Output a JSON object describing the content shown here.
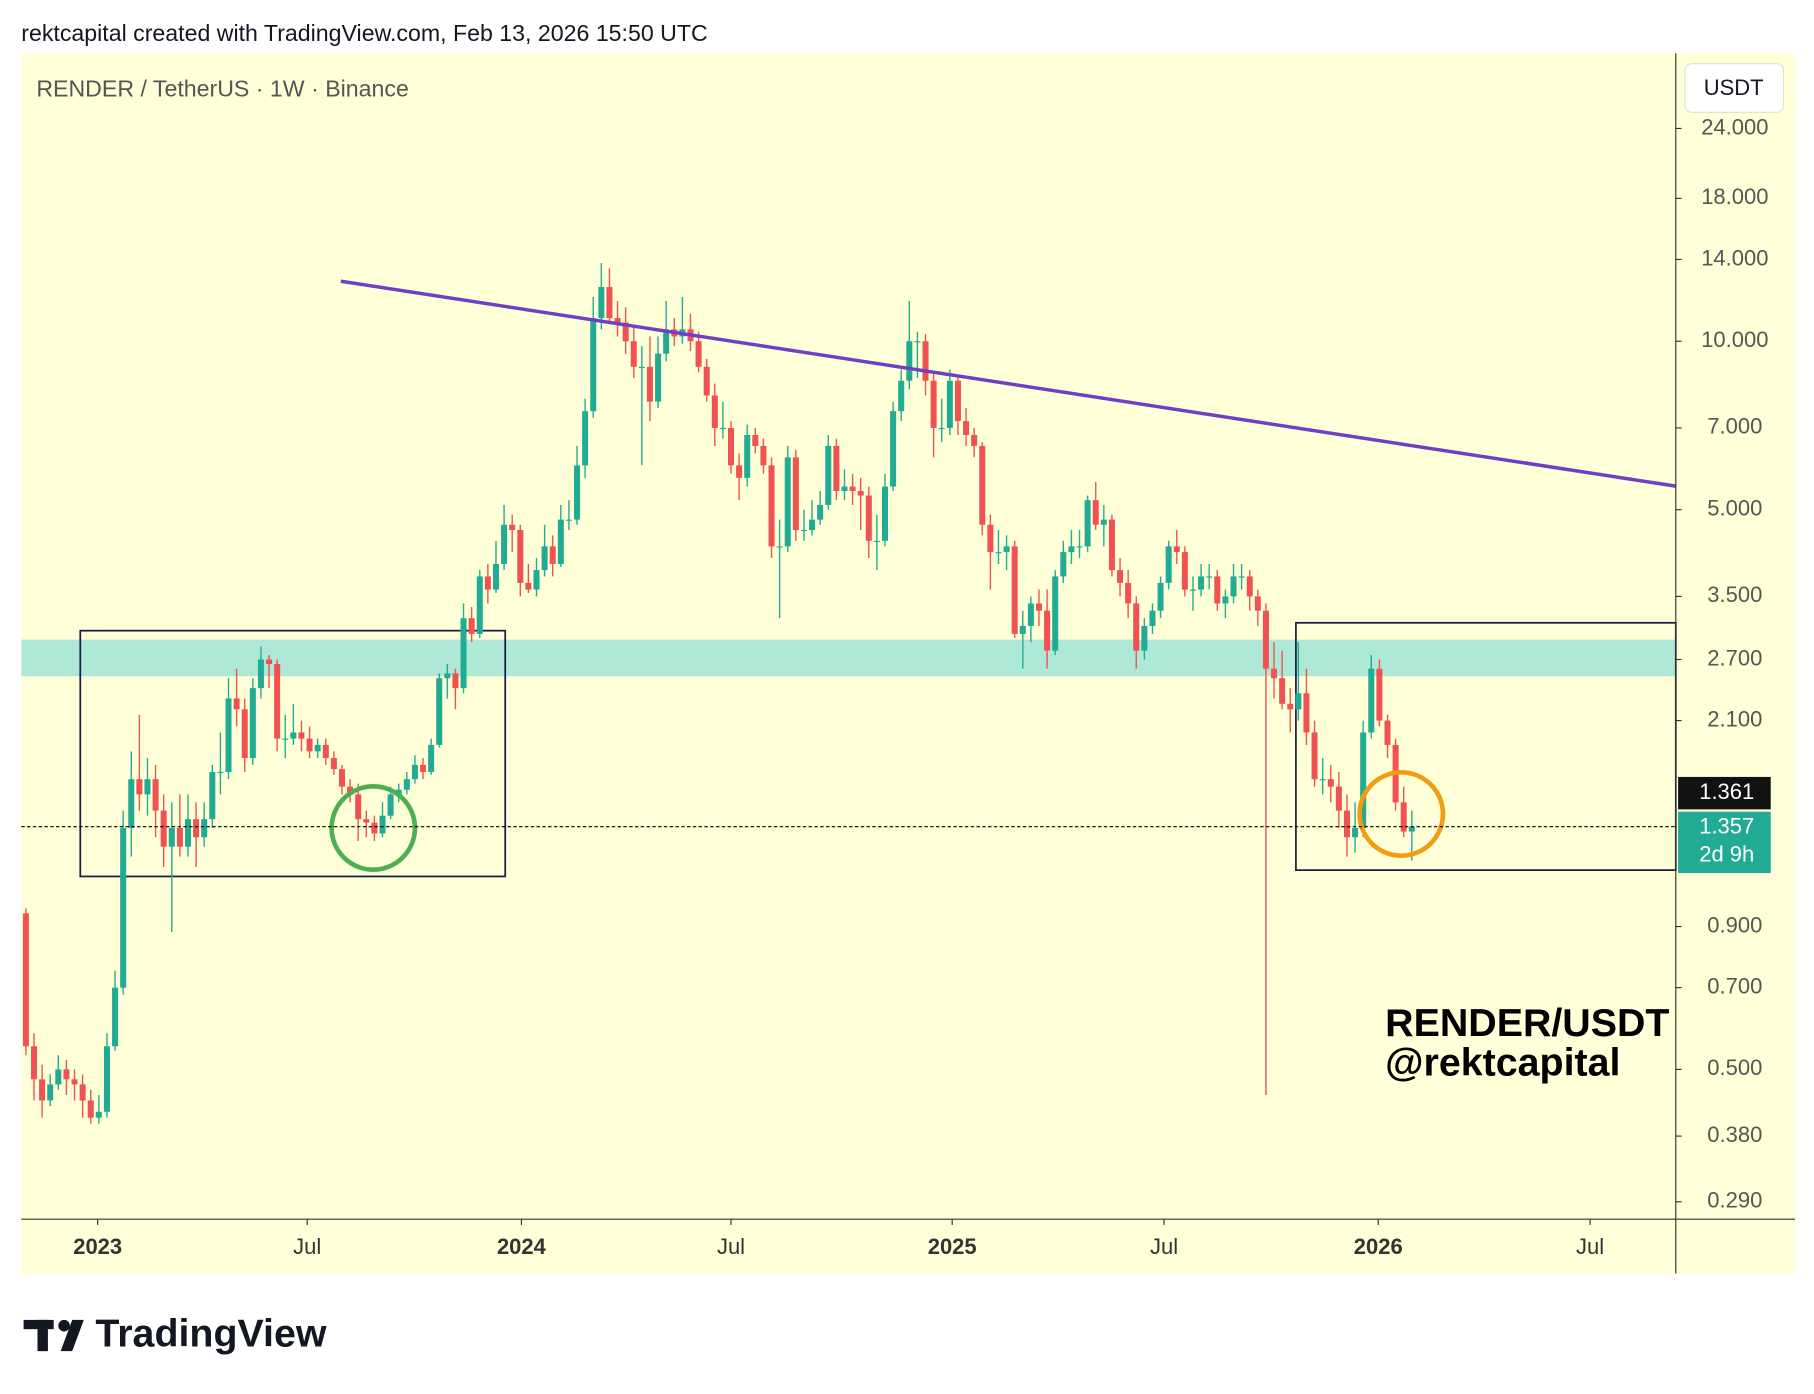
{
  "header": "rektcapital created with TradingView.com, Feb 13, 2026 15:50 UTC",
  "chart_data": {
    "type": "candlestick",
    "title": "RENDER / TetherUS · 1W · Binance",
    "currency": "USDT",
    "watermark": [
      "RENDER/USDT",
      "@rektcapital"
    ],
    "log_scale": true,
    "up_color": "#22ab94",
    "down_color": "#f05252",
    "ylim": [
      0.27,
      32.7
    ],
    "yticks": [
      {
        "value": 24,
        "label": "24.000"
      },
      {
        "value": 18,
        "label": "18.000"
      },
      {
        "value": 14,
        "label": "14.000"
      },
      {
        "value": 10,
        "label": "10.000"
      },
      {
        "value": 7,
        "label": "7.000"
      },
      {
        "value": 5,
        "label": "5.000"
      },
      {
        "value": 3.5,
        "label": "3.500"
      },
      {
        "value": 2.7,
        "label": "2.700"
      },
      {
        "value": 2.1,
        "label": "2.100"
      },
      {
        "value": 0.9,
        "label": "0.900"
      },
      {
        "value": 0.7,
        "label": "0.700"
      },
      {
        "value": 0.5,
        "label": "0.500"
      },
      {
        "value": 0.38,
        "label": "0.380"
      },
      {
        "value": 0.29,
        "label": "0.290"
      }
    ],
    "xlim": [
      -0.57,
      203.57
    ],
    "xticks": [
      {
        "value": 8.86,
        "label": "2023"
      },
      {
        "value": 34.71,
        "label": "Jul"
      },
      {
        "value": 61.14,
        "label": "2024"
      },
      {
        "value": 87,
        "label": "Jul"
      },
      {
        "value": 114.29,
        "label": "2025"
      },
      {
        "value": 140.43,
        "label": "Jul"
      },
      {
        "value": 166.86,
        "label": "2026"
      },
      {
        "value": 193,
        "label": "Jul"
      }
    ],
    "last_price": 1.357,
    "price_tag": 1.361,
    "countdown": "2d 9h",
    "ohlc": [
      [
        0.95,
        0.97,
        0.53,
        0.55
      ],
      [
        0.55,
        0.58,
        0.44,
        0.48
      ],
      [
        0.48,
        0.51,
        0.41,
        0.44
      ],
      [
        0.44,
        0.49,
        0.43,
        0.47
      ],
      [
        0.47,
        0.53,
        0.46,
        0.5
      ],
      [
        0.5,
        0.52,
        0.45,
        0.48
      ],
      [
        0.48,
        0.5,
        0.44,
        0.47
      ],
      [
        0.47,
        0.49,
        0.41,
        0.44
      ],
      [
        0.44,
        0.46,
        0.4,
        0.41
      ],
      [
        0.41,
        0.45,
        0.4,
        0.42
      ],
      [
        0.42,
        0.58,
        0.41,
        0.55
      ],
      [
        0.55,
        0.75,
        0.54,
        0.7
      ],
      [
        0.7,
        1.45,
        0.68,
        1.35
      ],
      [
        1.35,
        1.85,
        1.2,
        1.65
      ],
      [
        1.65,
        2.15,
        1.45,
        1.55
      ],
      [
        1.55,
        1.8,
        1.42,
        1.65
      ],
      [
        1.65,
        1.75,
        1.3,
        1.45
      ],
      [
        1.45,
        1.55,
        1.15,
        1.25
      ],
      [
        1.25,
        1.5,
        0.88,
        1.35
      ],
      [
        1.35,
        1.55,
        1.2,
        1.25
      ],
      [
        1.25,
        1.55,
        1.2,
        1.4
      ],
      [
        1.4,
        1.5,
        1.15,
        1.3
      ],
      [
        1.3,
        1.5,
        1.25,
        1.4
      ],
      [
        1.4,
        1.75,
        1.35,
        1.7
      ],
      [
        1.7,
        2.0,
        1.55,
        1.7
      ],
      [
        1.7,
        2.5,
        1.65,
        2.3
      ],
      [
        2.3,
        2.6,
        2.05,
        2.2
      ],
      [
        2.2,
        2.3,
        1.7,
        1.8
      ],
      [
        1.8,
        2.5,
        1.75,
        2.4
      ],
      [
        2.4,
        2.85,
        2.3,
        2.7
      ],
      [
        2.7,
        2.75,
        2.4,
        2.65
      ],
      [
        2.65,
        2.7,
        1.85,
        1.95
      ],
      [
        1.95,
        2.15,
        1.8,
        1.95
      ],
      [
        1.95,
        2.25,
        1.9,
        2.0
      ],
      [
        2.0,
        2.1,
        1.85,
        1.95
      ],
      [
        1.95,
        2.05,
        1.8,
        1.85
      ],
      [
        1.85,
        1.95,
        1.8,
        1.9
      ],
      [
        1.9,
        1.95,
        1.75,
        1.8
      ],
      [
        1.8,
        1.85,
        1.68,
        1.72
      ],
      [
        1.72,
        1.75,
        1.55,
        1.6
      ],
      [
        1.6,
        1.65,
        1.5,
        1.55
      ],
      [
        1.55,
        1.62,
        1.28,
        1.4
      ],
      [
        1.4,
        1.45,
        1.3,
        1.38
      ],
      [
        1.38,
        1.42,
        1.28,
        1.32
      ],
      [
        1.32,
        1.5,
        1.3,
        1.42
      ],
      [
        1.42,
        1.6,
        1.4,
        1.55
      ],
      [
        1.55,
        1.62,
        1.5,
        1.58
      ],
      [
        1.58,
        1.7,
        1.55,
        1.65
      ],
      [
        1.65,
        1.82,
        1.62,
        1.75
      ],
      [
        1.75,
        1.8,
        1.65,
        1.7
      ],
      [
        1.7,
        1.95,
        1.68,
        1.9
      ],
      [
        1.9,
        2.55,
        1.88,
        2.5
      ],
      [
        2.5,
        2.65,
        2.3,
        2.55
      ],
      [
        2.55,
        2.6,
        2.2,
        2.4
      ],
      [
        2.4,
        3.4,
        2.35,
        3.2
      ],
      [
        3.2,
        3.35,
        2.9,
        3.0
      ],
      [
        3.0,
        3.9,
        2.95,
        3.8
      ],
      [
        3.8,
        4.0,
        3.4,
        3.6
      ],
      [
        3.6,
        4.4,
        3.55,
        4.0
      ],
      [
        4.0,
        5.1,
        3.9,
        4.7
      ],
      [
        4.7,
        4.9,
        4.2,
        4.6
      ],
      [
        4.6,
        4.7,
        3.5,
        3.7
      ],
      [
        3.7,
        4.0,
        3.55,
        3.6
      ],
      [
        3.6,
        4.1,
        3.5,
        3.9
      ],
      [
        3.9,
        4.7,
        3.8,
        4.3
      ],
      [
        4.3,
        4.5,
        3.8,
        4.0
      ],
      [
        4.0,
        5.1,
        3.95,
        4.8
      ],
      [
        4.8,
        5.2,
        4.6,
        4.8
      ],
      [
        4.8,
        6.5,
        4.7,
        6.0
      ],
      [
        6.0,
        7.9,
        5.7,
        7.5
      ],
      [
        7.5,
        12.0,
        7.3,
        11.0
      ],
      [
        11.0,
        13.8,
        10.5,
        12.5
      ],
      [
        12.5,
        13.5,
        10.8,
        11.0
      ],
      [
        11.0,
        11.8,
        10.2,
        10.8
      ],
      [
        10.8,
        11.5,
        9.5,
        10.0
      ],
      [
        10.0,
        10.6,
        8.6,
        9.0
      ],
      [
        9.0,
        9.8,
        6.0,
        9.0
      ],
      [
        9.0,
        10.2,
        7.2,
        7.8
      ],
      [
        7.8,
        10.2,
        7.6,
        9.5
      ],
      [
        9.5,
        11.8,
        9.2,
        10.5
      ],
      [
        10.5,
        11.0,
        9.8,
        10.2
      ],
      [
        10.2,
        12.0,
        9.9,
        10.5
      ],
      [
        10.5,
        11.2,
        9.6,
        10.0
      ],
      [
        10.0,
        10.4,
        8.8,
        9.0
      ],
      [
        9.0,
        9.3,
        7.8,
        8.0
      ],
      [
        8.0,
        8.4,
        6.5,
        7.0
      ],
      [
        7.0,
        7.8,
        6.7,
        7.0
      ],
      [
        7.0,
        7.2,
        5.8,
        6.0
      ],
      [
        6.0,
        6.3,
        5.2,
        5.7
      ],
      [
        5.7,
        7.1,
        5.5,
        6.8
      ],
      [
        6.8,
        7.0,
        6.3,
        6.5
      ],
      [
        6.5,
        6.7,
        5.8,
        6.0
      ],
      [
        6.0,
        6.2,
        4.1,
        4.3
      ],
      [
        4.3,
        4.8,
        3.2,
        4.3
      ],
      [
        4.3,
        6.5,
        4.2,
        6.2
      ],
      [
        6.2,
        6.4,
        4.4,
        4.6
      ],
      [
        4.6,
        5.0,
        4.4,
        4.6
      ],
      [
        4.6,
        5.2,
        4.5,
        4.8
      ],
      [
        4.8,
        5.4,
        4.7,
        5.1
      ],
      [
        5.1,
        6.8,
        5.0,
        6.5
      ],
      [
        6.5,
        6.7,
        5.2,
        5.4
      ],
      [
        5.4,
        5.9,
        5.2,
        5.5
      ],
      [
        5.5,
        5.8,
        5.1,
        5.4
      ],
      [
        5.4,
        5.7,
        4.6,
        5.3
      ],
      [
        5.3,
        5.5,
        4.1,
        4.4
      ],
      [
        4.4,
        4.9,
        3.9,
        4.4
      ],
      [
        4.4,
        5.8,
        4.3,
        5.5
      ],
      [
        5.5,
        7.8,
        5.4,
        7.5
      ],
      [
        7.5,
        8.9,
        7.2,
        8.5
      ],
      [
        8.5,
        11.8,
        8.2,
        10.0
      ],
      [
        10.0,
        10.4,
        8.6,
        10.0
      ],
      [
        10.0,
        10.3,
        8.0,
        8.5
      ],
      [
        8.5,
        8.8,
        6.2,
        7.0
      ],
      [
        7.0,
        7.9,
        6.6,
        7.0
      ],
      [
        7.0,
        8.9,
        6.8,
        8.5
      ],
      [
        8.5,
        8.7,
        6.8,
        7.2
      ],
      [
        7.2,
        7.6,
        6.5,
        6.8
      ],
      [
        6.8,
        7.0,
        6.2,
        6.5
      ],
      [
        6.5,
        6.6,
        4.5,
        4.7
      ],
      [
        4.7,
        4.9,
        3.6,
        4.2
      ],
      [
        4.2,
        4.6,
        4.0,
        4.2
      ],
      [
        4.2,
        4.5,
        3.9,
        4.3
      ],
      [
        4.3,
        4.4,
        2.95,
        3.0
      ],
      [
        3.0,
        3.3,
        2.6,
        3.1
      ],
      [
        3.1,
        3.5,
        2.9,
        3.4
      ],
      [
        3.4,
        3.6,
        3.1,
        3.3
      ],
      [
        3.3,
        3.6,
        2.6,
        2.8
      ],
      [
        2.8,
        3.9,
        2.75,
        3.8
      ],
      [
        3.8,
        4.4,
        3.7,
        4.2
      ],
      [
        4.2,
        4.6,
        4.0,
        4.3
      ],
      [
        4.3,
        4.6,
        4.1,
        4.3
      ],
      [
        4.3,
        5.3,
        4.2,
        5.2
      ],
      [
        5.2,
        5.6,
        4.6,
        4.7
      ],
      [
        4.7,
        5.1,
        4.3,
        4.8
      ],
      [
        4.8,
        4.9,
        3.8,
        3.9
      ],
      [
        3.9,
        4.1,
        3.5,
        3.7
      ],
      [
        3.7,
        3.9,
        3.2,
        3.4
      ],
      [
        3.4,
        3.5,
        2.6,
        2.8
      ],
      [
        2.8,
        3.2,
        2.7,
        3.1
      ],
      [
        3.1,
        3.4,
        3.0,
        3.3
      ],
      [
        3.3,
        3.8,
        3.2,
        3.7
      ],
      [
        3.7,
        4.4,
        3.6,
        4.3
      ],
      [
        4.3,
        4.6,
        4.0,
        4.2
      ],
      [
        4.2,
        4.3,
        3.5,
        3.6
      ],
      [
        3.6,
        3.8,
        3.3,
        3.6
      ],
      [
        3.6,
        4.0,
        3.5,
        3.8
      ],
      [
        3.8,
        4.0,
        3.6,
        3.8
      ],
      [
        3.8,
        3.9,
        3.3,
        3.4
      ],
      [
        3.4,
        3.6,
        3.2,
        3.5
      ],
      [
        3.5,
        4.0,
        3.4,
        3.8
      ],
      [
        3.8,
        4.0,
        3.6,
        3.8
      ],
      [
        3.8,
        3.9,
        3.3,
        3.5
      ],
      [
        3.5,
        3.6,
        3.1,
        3.3
      ],
      [
        3.3,
        3.4,
        0.45,
        2.6
      ],
      [
        2.6,
        2.9,
        2.3,
        2.5
      ],
      [
        2.5,
        2.8,
        2.2,
        2.25
      ],
      [
        2.25,
        2.4,
        2.0,
        2.2
      ],
      [
        2.2,
        2.9,
        2.1,
        2.35
      ],
      [
        2.35,
        2.6,
        1.9,
        2.0
      ],
      [
        2.0,
        2.1,
        1.6,
        1.65
      ],
      [
        1.65,
        1.8,
        1.55,
        1.65
      ],
      [
        1.65,
        1.75,
        1.5,
        1.6
      ],
      [
        1.6,
        1.7,
        1.35,
        1.45
      ],
      [
        1.45,
        1.55,
        1.2,
        1.3
      ],
      [
        1.3,
        1.5,
        1.22,
        1.35
      ],
      [
        1.35,
        2.1,
        1.3,
        2.0
      ],
      [
        2.0,
        2.75,
        1.95,
        2.6
      ],
      [
        2.6,
        2.7,
        2.05,
        2.1
      ],
      [
        2.1,
        2.15,
        1.8,
        1.9
      ],
      [
        1.9,
        1.95,
        1.45,
        1.5
      ],
      [
        1.5,
        1.6,
        1.3,
        1.33
      ],
      [
        1.33,
        1.45,
        1.18,
        1.357
      ]
    ],
    "zone": {
      "range": [
        2.52,
        2.93
      ],
      "color": "#aee8d6"
    },
    "trendline": {
      "from": [
        38.86,
        12.8
      ],
      "to": [
        203.57,
        5.51
      ],
      "color": "#6f3fc4"
    },
    "boxes": [
      {
        "x": [
          6.71,
          59.14
        ],
        "y": [
          1.106,
          3.04
        ]
      },
      {
        "x": [
          156.7,
          203.57
        ],
        "y": [
          1.135,
          3.14
        ]
      }
    ],
    "circles": [
      {
        "x": 42.86,
        "y": 1.35,
        "color": "#4caf50"
      },
      {
        "x": 169.7,
        "y": 1.43,
        "color": "#f39c12"
      }
    ]
  },
  "footer": {
    "brand": "TradingView"
  }
}
